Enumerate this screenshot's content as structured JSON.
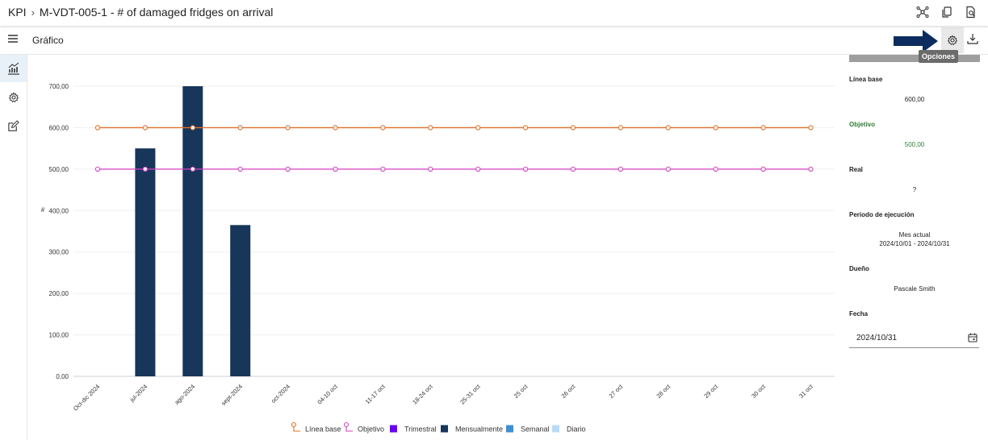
{
  "header": {
    "breadcrumb_root": "KPI",
    "breadcrumb_title": "M-VDT-005-1 - # of damaged fridges on arrival",
    "icons": [
      "network-icon",
      "copy-icon",
      "document-search-icon"
    ]
  },
  "subheader": {
    "title": "Gráfico",
    "tooltip": "Opciones"
  },
  "rail": {
    "items": [
      "chart-icon",
      "gear-icon",
      "edit-icon"
    ]
  },
  "panel": {
    "linea_base_label": "Línea base",
    "linea_base_value": "600,00",
    "objetivo_label": "Objetivo",
    "objetivo_value": "500,00",
    "real_label": "Real",
    "real_value": "?",
    "periodo_label": "Periodo de ejecución",
    "periodo_value": "Mes actual",
    "periodo_range": "2024/10/01 - 2024/10/31",
    "dueno_label": "Dueño",
    "dueno_value": "Pascale Smith",
    "fecha_label": "Fecha",
    "fecha_value": "2024/10/31"
  },
  "colors": {
    "accent": "#0c2c5f",
    "linea_base": "#e0702a",
    "objetivo": "#d63fc4",
    "trimestral": "#6a00f4",
    "mensualmente": "#17365a",
    "semanal": "#3d8fd0",
    "diario": "#b7dcf7",
    "objetivo_text": "#2e7d32"
  },
  "chart_data": {
    "type": "bar",
    "ylabel": "#",
    "ylim": [
      0,
      700
    ],
    "yticks": [
      "0,00",
      "100,00",
      "200,00",
      "300,00",
      "400,00",
      "500,00",
      "600,00",
      "700,00"
    ],
    "categories": [
      "Oct-dic 2024",
      "jul-2024",
      "ago-2024",
      "sept-2024",
      "oct-2024",
      "04-10 oct",
      "11-17 oct",
      "18-24 oct",
      "25-31 oct",
      "25 oct",
      "26 oct",
      "27 oct",
      "28 oct",
      "29 oct",
      "30 oct",
      "31 oct"
    ],
    "series": [
      {
        "name": "Mensualmente",
        "kind": "bar",
        "values": [
          null,
          550,
          700,
          365,
          null,
          null,
          null,
          null,
          null,
          null,
          null,
          null,
          null,
          null,
          null,
          null
        ]
      },
      {
        "name": "Línea base",
        "kind": "line",
        "values": [
          600,
          600,
          600,
          600,
          600,
          600,
          600,
          600,
          600,
          600,
          600,
          600,
          600,
          600,
          600,
          600
        ]
      },
      {
        "name": "Objetivo",
        "kind": "line",
        "values": [
          500,
          500,
          500,
          500,
          500,
          500,
          500,
          500,
          500,
          500,
          500,
          500,
          500,
          500,
          500,
          500
        ]
      }
    ],
    "legend": [
      "Línea base",
      "Objetivo",
      "Trimestral",
      "Mensualmente",
      "Semanal",
      "Diario"
    ],
    "legend_position": "bottom",
    "grid": true
  }
}
